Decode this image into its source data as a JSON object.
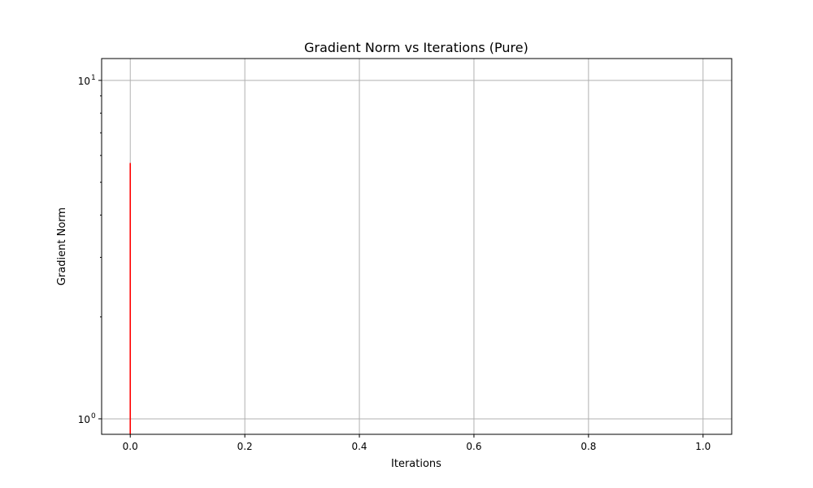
{
  "chart_data": {
    "type": "line",
    "title": "Gradient Norm vs Iterations (Pure)",
    "xlabel": "Iterations",
    "ylabel": "Gradient Norm",
    "xlim": [
      -0.05,
      1.05
    ],
    "ylim": [
      0.9,
      11.6
    ],
    "yscale": "log",
    "grid": true,
    "x_ticks": [
      {
        "value": 0.0,
        "label": "0.0"
      },
      {
        "value": 0.2,
        "label": "0.2"
      },
      {
        "value": 0.4,
        "label": "0.4"
      },
      {
        "value": 0.6,
        "label": "0.6"
      },
      {
        "value": 0.8,
        "label": "0.8"
      },
      {
        "value": 1.0,
        "label": "1.0"
      }
    ],
    "y_major_ticks": [
      {
        "value": 1,
        "base": "10",
        "exp": "0"
      },
      {
        "value": 10,
        "base": "10",
        "exp": "1"
      }
    ],
    "y_minor_ticks": [
      2,
      3,
      4,
      5,
      6,
      7,
      8,
      9
    ],
    "series": [
      {
        "color": "#ff0000",
        "x": [
          0.0,
          0.0
        ],
        "y": [
          0.9,
          5.7
        ]
      }
    ]
  }
}
